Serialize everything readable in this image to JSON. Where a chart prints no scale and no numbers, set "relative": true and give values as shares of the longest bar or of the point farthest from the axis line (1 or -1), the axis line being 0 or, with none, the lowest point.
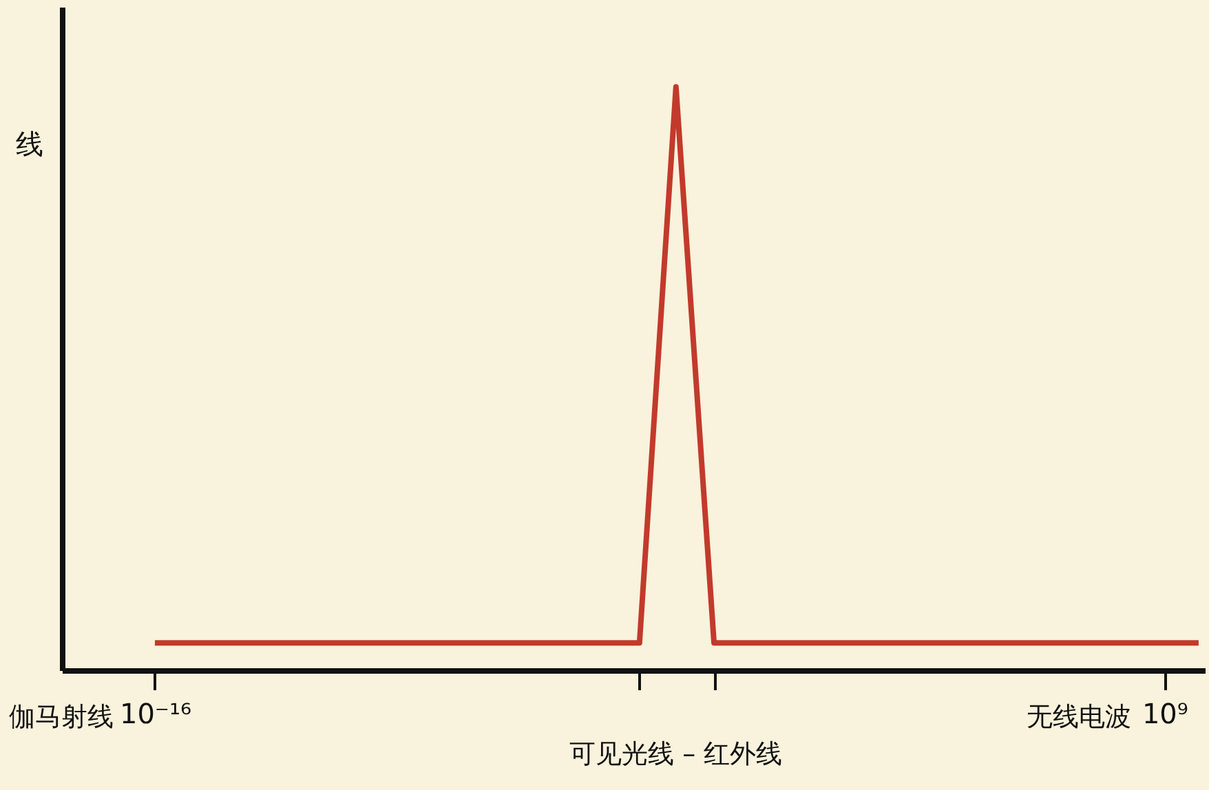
{
  "chart_data": {
    "type": "line",
    "ylabel": "线",
    "relative": true,
    "log": "x",
    "x": [
      1e-16,
      0.0001,
      0.0008,
      0.007,
      7000000000.0
    ],
    "series": [
      {
        "color": "#c23a2c",
        "values": [
          0.047,
          0.047,
          1,
          0.047,
          0.047
        ]
      }
    ],
    "xlim": [
      5e-19,
      10000000000.0
    ],
    "xticks": [
      {
        "value": 1e-16,
        "label": "10⁻¹⁶"
      },
      {
        "value": 0.0001,
        "label": null
      },
      {
        "value": 0.007,
        "label": null
      },
      {
        "value": 1000000000.0,
        "label": "10⁹"
      }
    ],
    "annotations": [
      "伽马射线",
      "可见光线 – 红外线",
      "无线电波"
    ],
    "grid": false,
    "marker": "none",
    "line_style": "solid"
  }
}
